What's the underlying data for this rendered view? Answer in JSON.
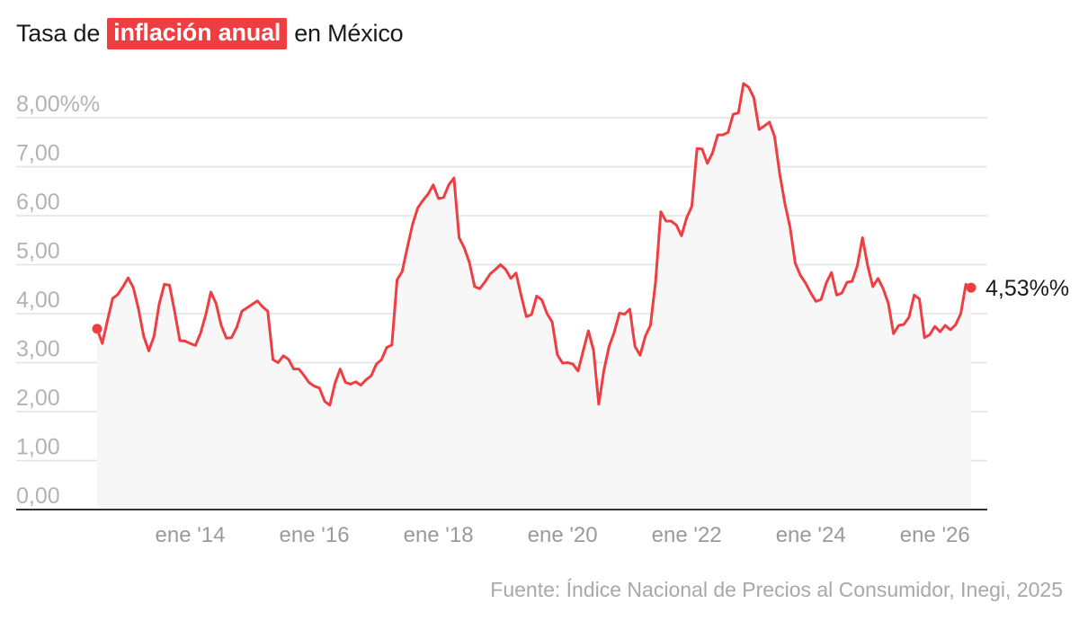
{
  "title": {
    "prefix": "Tasa de",
    "highlight": "inflación anual",
    "suffix": "en México"
  },
  "source": "Fuente: Índice Nacional de Precios al Consumidor, Inegi, 2025",
  "colors": {
    "line": "#ef3e42",
    "highlight_bg": "#ef3e42",
    "area": "#f7f7f7",
    "grid": "#e2e2e2",
    "axis": "#333333"
  },
  "chart_data": {
    "type": "area",
    "title": "Tasa de inflación anual en México",
    "xlabel": "",
    "ylabel": "",
    "ylim": [
      0,
      8.5
    ],
    "grid": true,
    "y_ticks": [
      {
        "value": 0,
        "label": "0,00"
      },
      {
        "value": 1,
        "label": "1,00"
      },
      {
        "value": 2,
        "label": "2,00"
      },
      {
        "value": 3,
        "label": "3,00"
      },
      {
        "value": 4,
        "label": "4,00"
      },
      {
        "value": 5,
        "label": "5,00"
      },
      {
        "value": 6,
        "label": "6,00"
      },
      {
        "value": 7,
        "label": "7,00"
      },
      {
        "value": 8,
        "label": "8,00%%"
      }
    ],
    "x_ticks": [
      {
        "value": "2014-01",
        "label": "ene '14"
      },
      {
        "value": "2016-01",
        "label": "ene '16"
      },
      {
        "value": "2018-01",
        "label": "ene '18"
      },
      {
        "value": "2020-01",
        "label": "ene '20"
      },
      {
        "value": "2022-01",
        "label": "ene '22"
      },
      {
        "value": "2024-01",
        "label": "ene '24"
      },
      {
        "value": "2026-01",
        "label": "ene '26"
      }
    ],
    "end_label": "4,53%%",
    "series": [
      {
        "values": [
          {
            "x": "2012-07",
            "y": 3.69
          },
          {
            "x": "2012-08",
            "y": 3.39
          },
          {
            "x": "2012-09",
            "y": 3.86
          },
          {
            "x": "2012-10",
            "y": 4.31
          },
          {
            "x": "2012-11",
            "y": 4.39
          },
          {
            "x": "2012-12",
            "y": 4.55
          },
          {
            "x": "2013-01",
            "y": 4.73
          },
          {
            "x": "2013-02",
            "y": 4.53
          },
          {
            "x": "2013-03",
            "y": 4.1
          },
          {
            "x": "2013-04",
            "y": 3.54
          },
          {
            "x": "2013-05",
            "y": 3.24
          },
          {
            "x": "2013-06",
            "y": 3.54
          },
          {
            "x": "2013-07",
            "y": 4.19
          },
          {
            "x": "2013-08",
            "y": 4.6
          },
          {
            "x": "2013-09",
            "y": 4.58
          },
          {
            "x": "2013-10",
            "y": 4.04
          },
          {
            "x": "2013-11",
            "y": 3.45
          },
          {
            "x": "2013-12",
            "y": 3.44
          },
          {
            "x": "2014-01",
            "y": 3.39
          },
          {
            "x": "2014-02",
            "y": 3.35
          },
          {
            "x": "2014-03",
            "y": 3.6
          },
          {
            "x": "2014-04",
            "y": 3.97
          },
          {
            "x": "2014-05",
            "y": 4.44
          },
          {
            "x": "2014-06",
            "y": 4.21
          },
          {
            "x": "2014-07",
            "y": 3.76
          },
          {
            "x": "2014-08",
            "y": 3.5
          },
          {
            "x": "2014-09",
            "y": 3.51
          },
          {
            "x": "2014-10",
            "y": 3.72
          },
          {
            "x": "2014-11",
            "y": 4.05
          },
          {
            "x": "2014-12",
            "y": 4.12
          },
          {
            "x": "2015-01",
            "y": 4.19
          },
          {
            "x": "2015-02",
            "y": 4.26
          },
          {
            "x": "2015-03",
            "y": 4.14
          },
          {
            "x": "2015-04",
            "y": 4.05
          },
          {
            "x": "2015-05",
            "y": 3.06
          },
          {
            "x": "2015-06",
            "y": 3.0
          },
          {
            "x": "2015-07",
            "y": 3.14
          },
          {
            "x": "2015-08",
            "y": 3.07
          },
          {
            "x": "2015-09",
            "y": 2.87
          },
          {
            "x": "2015-10",
            "y": 2.87
          },
          {
            "x": "2015-11",
            "y": 2.74
          },
          {
            "x": "2015-12",
            "y": 2.59
          },
          {
            "x": "2016-01",
            "y": 2.52
          },
          {
            "x": "2016-02",
            "y": 2.48
          },
          {
            "x": "2016-03",
            "y": 2.21
          },
          {
            "x": "2016-04",
            "y": 2.13
          },
          {
            "x": "2016-05",
            "y": 2.58
          },
          {
            "x": "2016-06",
            "y": 2.87
          },
          {
            "x": "2016-07",
            "y": 2.6
          },
          {
            "x": "2016-08",
            "y": 2.56
          },
          {
            "x": "2016-09",
            "y": 2.61
          },
          {
            "x": "2016-10",
            "y": 2.54
          },
          {
            "x": "2016-11",
            "y": 2.65
          },
          {
            "x": "2016-12",
            "y": 2.73
          },
          {
            "x": "2017-01",
            "y": 2.97
          },
          {
            "x": "2017-02",
            "y": 3.06
          },
          {
            "x": "2017-03",
            "y": 3.31
          },
          {
            "x": "2017-04",
            "y": 3.36
          },
          {
            "x": "2017-05",
            "y": 4.69
          },
          {
            "x": "2017-06",
            "y": 4.86
          },
          {
            "x": "2017-07",
            "y": 5.36
          },
          {
            "x": "2017-08",
            "y": 5.82
          },
          {
            "x": "2017-09",
            "y": 6.16
          },
          {
            "x": "2017-10",
            "y": 6.31
          },
          {
            "x": "2017-11",
            "y": 6.44
          },
          {
            "x": "2017-12",
            "y": 6.63
          },
          {
            "x": "2018-01",
            "y": 6.35
          },
          {
            "x": "2018-02",
            "y": 6.37
          },
          {
            "x": "2018-03",
            "y": 6.63
          },
          {
            "x": "2018-04",
            "y": 6.77
          },
          {
            "x": "2018-05",
            "y": 5.55
          },
          {
            "x": "2018-06",
            "y": 5.34
          },
          {
            "x": "2018-07",
            "y": 5.04
          },
          {
            "x": "2018-08",
            "y": 4.55
          },
          {
            "x": "2018-09",
            "y": 4.51
          },
          {
            "x": "2018-10",
            "y": 4.65
          },
          {
            "x": "2018-11",
            "y": 4.81
          },
          {
            "x": "2018-12",
            "y": 4.9
          },
          {
            "x": "2019-01",
            "y": 5.0
          },
          {
            "x": "2019-02",
            "y": 4.9
          },
          {
            "x": "2019-03",
            "y": 4.72
          },
          {
            "x": "2019-04",
            "y": 4.83
          },
          {
            "x": "2019-05",
            "y": 4.37
          },
          {
            "x": "2019-06",
            "y": 3.94
          },
          {
            "x": "2019-07",
            "y": 3.98
          },
          {
            "x": "2019-08",
            "y": 4.36
          },
          {
            "x": "2019-09",
            "y": 4.28
          },
          {
            "x": "2019-10",
            "y": 4.0
          },
          {
            "x": "2019-11",
            "y": 3.83
          },
          {
            "x": "2019-12",
            "y": 3.16
          },
          {
            "x": "2020-01",
            "y": 2.99
          },
          {
            "x": "2020-02",
            "y": 3.0
          },
          {
            "x": "2020-03",
            "y": 2.97
          },
          {
            "x": "2020-04",
            "y": 2.83
          },
          {
            "x": "2020-05",
            "y": 3.24
          },
          {
            "x": "2020-06",
            "y": 3.65
          },
          {
            "x": "2020-07",
            "y": 3.25
          },
          {
            "x": "2020-08",
            "y": 2.15
          },
          {
            "x": "2020-09",
            "y": 2.84
          },
          {
            "x": "2020-10",
            "y": 3.33
          },
          {
            "x": "2020-11",
            "y": 3.62
          },
          {
            "x": "2020-12",
            "y": 4.01
          },
          {
            "x": "2021-01",
            "y": 3.99
          },
          {
            "x": "2021-02",
            "y": 4.09
          },
          {
            "x": "2021-03",
            "y": 3.33
          },
          {
            "x": "2021-04",
            "y": 3.15
          },
          {
            "x": "2021-05",
            "y": 3.54
          },
          {
            "x": "2021-06",
            "y": 3.76
          },
          {
            "x": "2021-07",
            "y": 4.67
          },
          {
            "x": "2021-08",
            "y": 6.08
          },
          {
            "x": "2021-09",
            "y": 5.89
          },
          {
            "x": "2021-10",
            "y": 5.89
          },
          {
            "x": "2021-11",
            "y": 5.81
          },
          {
            "x": "2021-12",
            "y": 5.59
          },
          {
            "x": "2022-01",
            "y": 5.96
          },
          {
            "x": "2022-02",
            "y": 6.19
          },
          {
            "x": "2022-03",
            "y": 7.37
          },
          {
            "x": "2022-04",
            "y": 7.36
          },
          {
            "x": "2022-05",
            "y": 7.07
          },
          {
            "x": "2022-06",
            "y": 7.28
          },
          {
            "x": "2022-07",
            "y": 7.65
          },
          {
            "x": "2022-08",
            "y": 7.65
          },
          {
            "x": "2022-09",
            "y": 7.7
          },
          {
            "x": "2022-10",
            "y": 8.07
          },
          {
            "x": "2022-11",
            "y": 8.1
          },
          {
            "x": "2022-12",
            "y": 8.7
          },
          {
            "x": "2023-01",
            "y": 8.62
          },
          {
            "x": "2023-02",
            "y": 8.41
          },
          {
            "x": "2023-03",
            "y": 7.76
          },
          {
            "x": "2023-04",
            "y": 7.83
          },
          {
            "x": "2023-05",
            "y": 7.91
          },
          {
            "x": "2023-06",
            "y": 7.62
          },
          {
            "x": "2023-07",
            "y": 6.85
          },
          {
            "x": "2023-08",
            "y": 6.25
          },
          {
            "x": "2023-09",
            "y": 5.76
          },
          {
            "x": "2023-10",
            "y": 5.03
          },
          {
            "x": "2023-11",
            "y": 4.78
          },
          {
            "x": "2023-12",
            "y": 4.62
          },
          {
            "x": "2024-01",
            "y": 4.42
          },
          {
            "x": "2024-02",
            "y": 4.25
          },
          {
            "x": "2024-03",
            "y": 4.29
          },
          {
            "x": "2024-04",
            "y": 4.63
          },
          {
            "x": "2024-05",
            "y": 4.84
          },
          {
            "x": "2024-06",
            "y": 4.38
          },
          {
            "x": "2024-07",
            "y": 4.42
          },
          {
            "x": "2024-08",
            "y": 4.64
          },
          {
            "x": "2024-09",
            "y": 4.66
          },
          {
            "x": "2024-10",
            "y": 4.98
          },
          {
            "x": "2024-11",
            "y": 5.55
          },
          {
            "x": "2024-12",
            "y": 4.98
          },
          {
            "x": "2025-01",
            "y": 4.55
          },
          {
            "x": "2025-02",
            "y": 4.72
          },
          {
            "x": "2025-03",
            "y": 4.51
          },
          {
            "x": "2025-04",
            "y": 4.21
          },
          {
            "x": "2025-05",
            "y": 3.59
          },
          {
            "x": "2025-06",
            "y": 3.76
          },
          {
            "x": "2025-07",
            "y": 3.78
          },
          {
            "x": "2025-08",
            "y": 3.93
          },
          {
            "x": "2025-09",
            "y": 4.38
          },
          {
            "x": "2025-10",
            "y": 4.3
          },
          {
            "x": "2025-11",
            "y": 3.51
          },
          {
            "x": "2025-12",
            "y": 3.57
          },
          {
            "x": "2026-01",
            "y": 3.74
          },
          {
            "x": "2026-02",
            "y": 3.63
          },
          {
            "x": "2026-03",
            "y": 3.76
          },
          {
            "x": "2026-04",
            "y": 3.67
          },
          {
            "x": "2026-05",
            "y": 3.77
          },
          {
            "x": "2026-06",
            "y": 4.0
          },
          {
            "x": "2026-07",
            "y": 4.6
          },
          {
            "x": "2026-08",
            "y": 4.53
          }
        ]
      }
    ]
  }
}
